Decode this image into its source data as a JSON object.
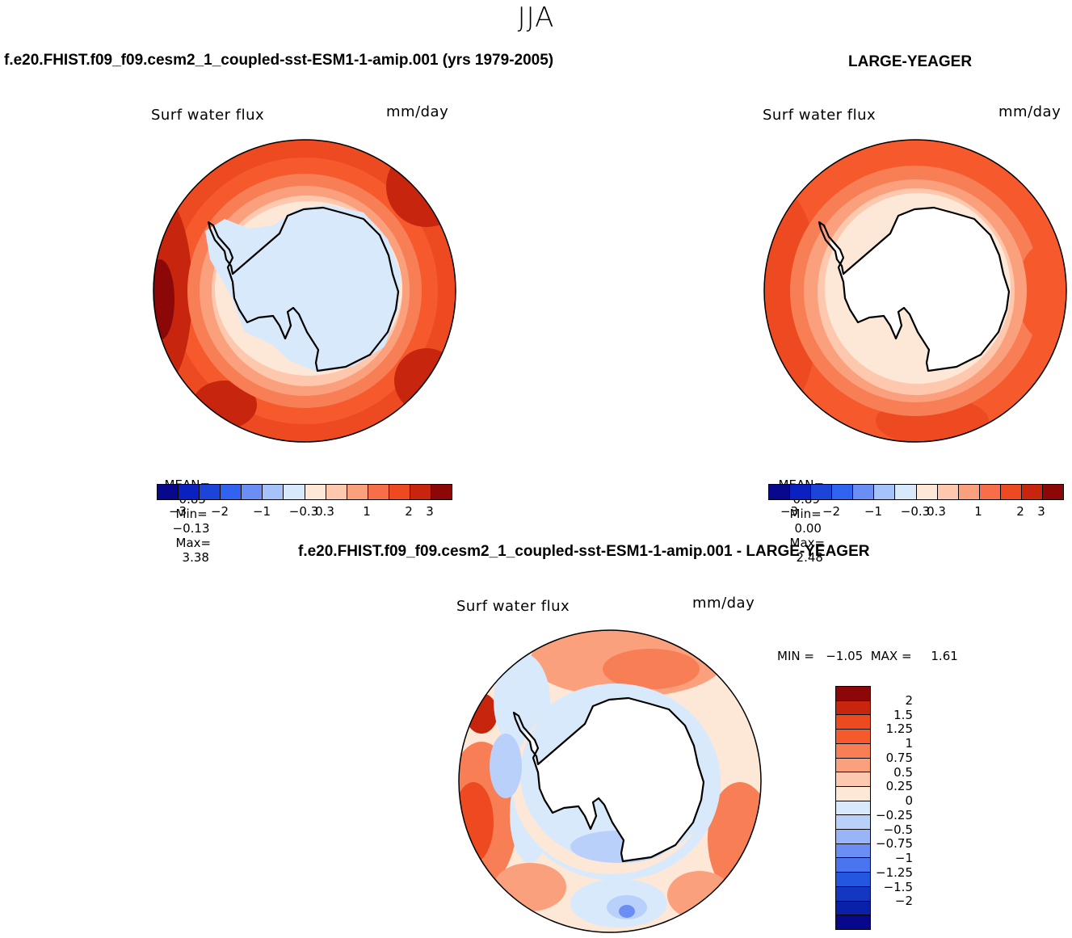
{
  "season": "JJA",
  "panel1": {
    "case_title": "f.e20.FHIST.f09_f09.cesm2_1_coupled-sst-ESM1-1-amip.001 (yrs 1979-2005)",
    "variable": "Surf  water  flux",
    "units": "mm/day",
    "stats": {
      "mean_label": "MEAN=",
      "mean": "0.85",
      "min_label": "Min=",
      "min": "−0.13",
      "max_label": "Max=",
      "max": "3.38"
    }
  },
  "panel2": {
    "case_title": "LARGE-YEAGER",
    "variable": "Surf  water  flux",
    "units": "mm/day",
    "stats": {
      "mean_label": "MEAN=",
      "mean": "0.89",
      "min_label": "Min=",
      "min": "0.00",
      "max_label": "Max=",
      "max": "2.48"
    }
  },
  "panel3": {
    "case_title": "f.e20.FHIST.f09_f09.cesm2_1_coupled-sst-ESM1-1-amip.001 - LARGE-YEAGER",
    "variable": "Surf  water  flux",
    "units": "mm/day",
    "minmax": "MIN =   −1.05  MAX =     1.61"
  },
  "colorbar_h": {
    "colors": [
      "#08088c",
      "#0a20c0",
      "#1c44d8",
      "#2f63f0",
      "#6b8ef5",
      "#a6c2fb",
      "#d8e9fb",
      "#fde8d8",
      "#fdc8ae",
      "#fba07c",
      "#f76e48",
      "#ee4a22",
      "#c8250e",
      "#8c0808"
    ],
    "ticks": [
      "−3",
      "−2",
      "−1",
      "−0.3",
      "0.3",
      "1",
      "2",
      "3"
    ]
  },
  "colorbar_v": {
    "colors": [
      "#8c0808",
      "#c8250e",
      "#ee4a22",
      "#f65a2c",
      "#f77e55",
      "#fba07c",
      "#fdc8ae",
      "#fde8d8",
      "#d8e9fb",
      "#b9d0fb",
      "#98b5f8",
      "#6b8ef5",
      "#4a74f0",
      "#2456e0",
      "#1536c0",
      "#0a20a8",
      "#08088c"
    ],
    "ticks": [
      "2",
      "1.5",
      "1.25",
      "1",
      "0.75",
      "0.5",
      "0.25",
      "0",
      "−0.25",
      "−0.5",
      "−0.75",
      "−1",
      "−1.25",
      "−1.5",
      "−2"
    ]
  }
}
